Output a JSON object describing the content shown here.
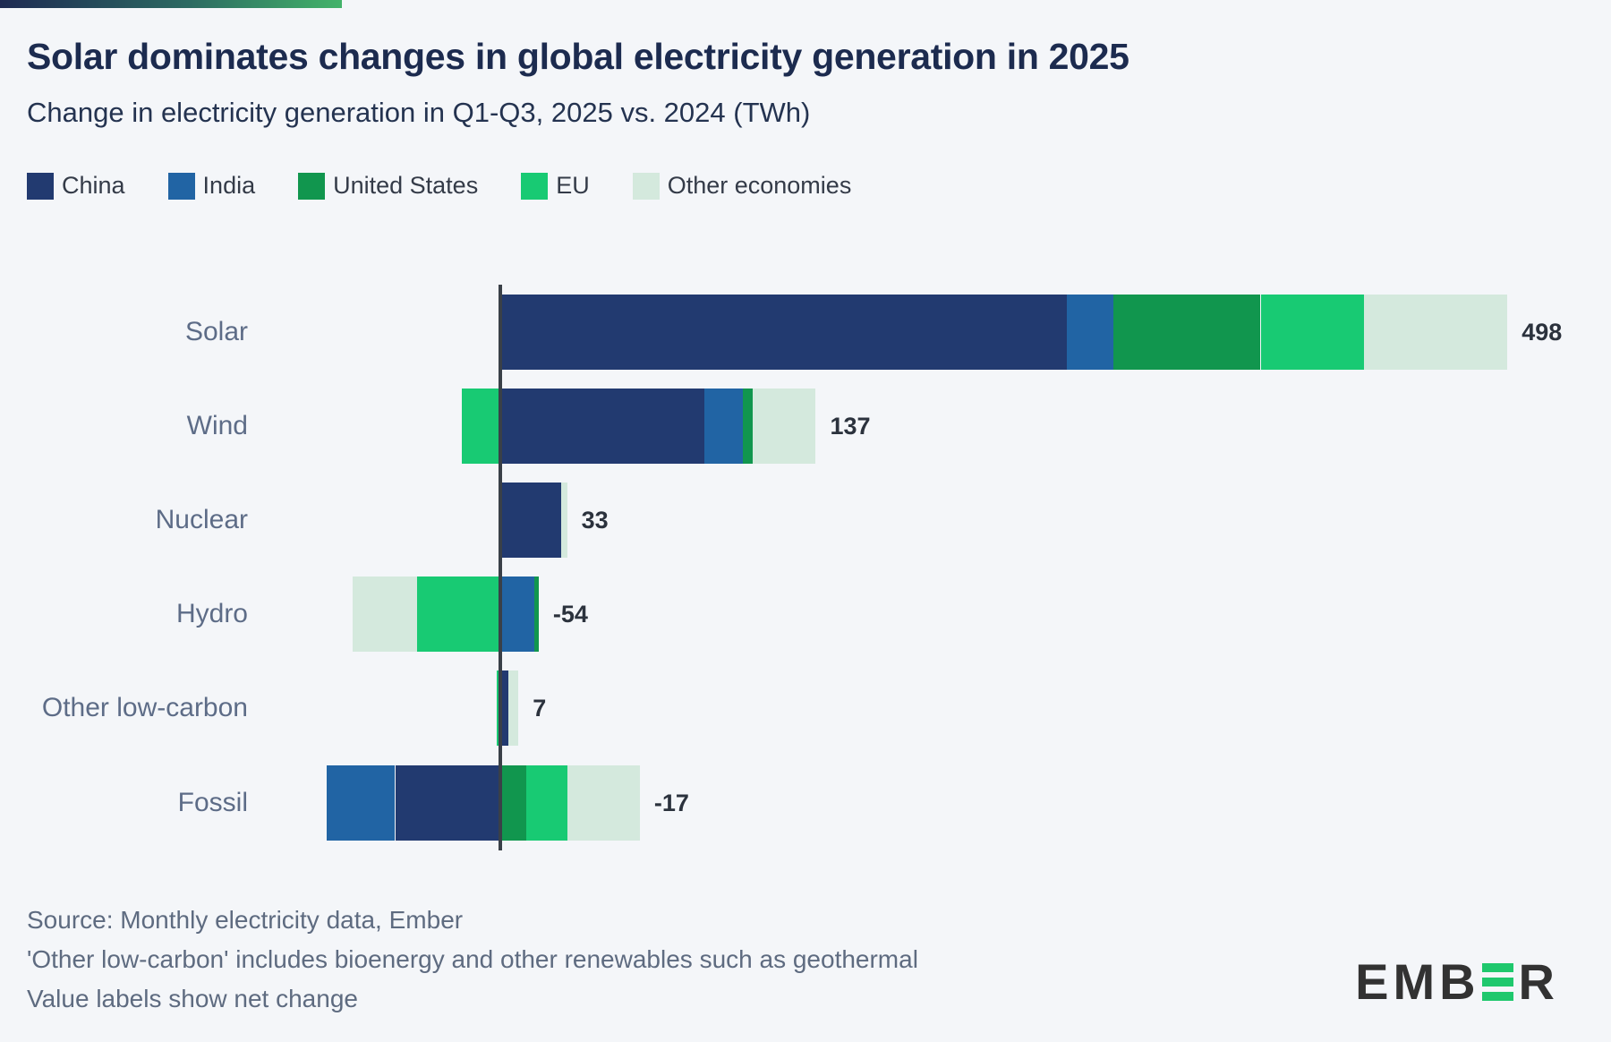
{
  "page": {
    "background": "#f4f6f9",
    "accent_gradient_start": "#1e2a52",
    "accent_gradient_end": "#43b36a"
  },
  "header": {
    "title": "Solar dominates changes in global electricity generation in 2025",
    "subtitle": "Change in electricity generation in Q1-Q3, 2025 vs. 2024 (TWh)"
  },
  "legend": [
    {
      "label": "China",
      "color": "#223a70"
    },
    {
      "label": "India",
      "color": "#2164a4"
    },
    {
      "label": "United States",
      "color": "#11964e"
    },
    {
      "label": "EU",
      "color": "#18ca73"
    },
    {
      "label": "Other economies",
      "color": "#d4e9dd"
    }
  ],
  "chart_data": {
    "type": "bar",
    "orientation": "horizontal",
    "unit": "TWh",
    "title": "Change in electricity generation in Q1-Q3, 2025 vs. 2024 (TWh)",
    "categories": [
      "Solar",
      "Wind",
      "Nuclear",
      "Hydro",
      "Other low-carbon",
      "Fossil"
    ],
    "series": [
      {
        "name": "China",
        "color": "#223a70",
        "values": [
          280,
          101,
          30,
          0,
          4,
          -52
        ]
      },
      {
        "name": "India",
        "color": "#2164a4",
        "values": [
          23,
          19,
          0,
          17,
          0,
          -34
        ]
      },
      {
        "name": "United States",
        "color": "#11964e",
        "values": [
          73,
          5,
          0,
          2,
          0,
          13
        ]
      },
      {
        "name": "EU",
        "color": "#18ca73",
        "values": [
          51,
          -19,
          0,
          -41,
          -2,
          20
        ]
      },
      {
        "name": "Other economies",
        "color": "#d4e9dd",
        "values": [
          71,
          31,
          3,
          -32,
          5,
          36
        ]
      }
    ],
    "net_change": [
      498,
      137,
      33,
      -54,
      7,
      -17
    ],
    "net_labels": [
      "498",
      "137",
      "33",
      "-54",
      "7",
      "-17"
    ],
    "zero_line": true,
    "grid": false,
    "legend_position": "top",
    "value_note": "Value labels show net change"
  },
  "footer": {
    "lines": [
      "Source: Monthly electricity data, Ember",
      "'Other low-carbon' includes bioenergy and other renewables such as geothermal",
      "Value labels show net change"
    ]
  },
  "logo": {
    "name": "EMBER",
    "text_left": "EMB",
    "text_right": "R",
    "bar_color": "#1fc86d"
  }
}
